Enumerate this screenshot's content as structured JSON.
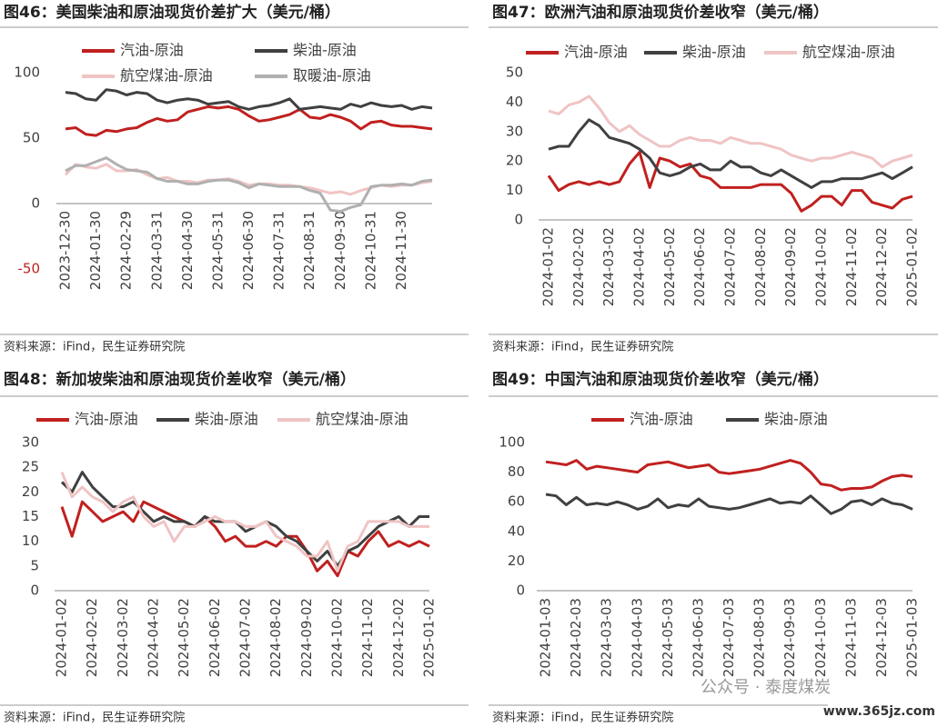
{
  "chart_data": [
    {
      "type": "line",
      "title": "图46：美国柴油和原油现货价差扩大（美元/桶）",
      "source": "资料来源：iFind，民生证券研究院",
      "categories": [
        "2023-12-30",
        null,
        null,
        "2024-01-30",
        null,
        null,
        "2024-02-29",
        null,
        null,
        "2024-03-31",
        null,
        null,
        "2024-04-30",
        null,
        null,
        "2024-05-31",
        null,
        null,
        "2024-06-30",
        null,
        null,
        "2024-07-31",
        null,
        null,
        "2024-08-31",
        null,
        null,
        "2024-09-30",
        null,
        null,
        "2024-10-31",
        null,
        null,
        "2024-11-30",
        null,
        null,
        null
      ],
      "series": [
        {
          "name": "汽油-原油",
          "color": "#c0201f",
          "values": [
            57,
            58,
            53,
            52,
            56,
            55,
            57,
            58,
            62,
            65,
            63,
            64,
            70,
            72,
            74,
            73,
            74,
            72,
            67,
            63,
            64,
            66,
            68,
            72,
            66,
            65,
            68,
            66,
            63,
            57,
            62,
            63,
            60,
            59,
            59,
            58,
            57
          ]
        },
        {
          "name": "柴油-原油",
          "color": "#404040",
          "values": [
            85,
            84,
            80,
            79,
            87,
            86,
            83,
            85,
            84,
            79,
            77,
            79,
            80,
            79,
            76,
            77,
            78,
            74,
            72,
            74,
            75,
            77,
            80,
            72,
            73,
            74,
            73,
            72,
            76,
            74,
            77,
            75,
            74,
            75,
            72,
            74,
            73
          ]
        },
        {
          "name": "航空煤油-原油",
          "color": "#f0c4c4",
          "values": [
            22,
            30,
            28,
            27,
            30,
            25,
            25,
            26,
            22,
            19,
            20,
            17,
            17,
            16,
            18,
            18,
            19,
            17,
            14,
            15,
            15,
            14,
            14,
            13,
            12,
            10,
            8,
            9,
            7,
            10,
            12,
            14,
            13,
            14,
            14,
            16,
            17
          ]
        },
        {
          "name": "取暖油-原油",
          "color": "#b0b0b0",
          "values": [
            25,
            29,
            29,
            32,
            35,
            30,
            26,
            25,
            24,
            19,
            17,
            17,
            15,
            15,
            17,
            18,
            18,
            16,
            12,
            15,
            14,
            13,
            13,
            13,
            10,
            8,
            -5,
            -6,
            -3,
            -1,
            13,
            14,
            14,
            15,
            14,
            17,
            18
          ]
        }
      ],
      "ylim": [
        -50,
        100
      ],
      "yticks": [
        -50,
        0,
        50,
        100
      ]
    },
    {
      "type": "line",
      "title": "图47：欧洲汽油和原油现货价差收窄（美元/桶）",
      "source": "资料来源：iFind，民生证券研究院",
      "categories": [
        "2024-01-02",
        null,
        null,
        "2024-02-02",
        null,
        null,
        "2024-03-02",
        null,
        null,
        "2024-04-02",
        null,
        null,
        "2024-05-02",
        null,
        null,
        "2024-06-02",
        null,
        null,
        "2024-07-02",
        null,
        null,
        "2024-08-02",
        null,
        null,
        "2024-09-02",
        null,
        null,
        "2024-10-02",
        null,
        null,
        "2024-11-02",
        null,
        null,
        "2024-12-02",
        null,
        null,
        "2025-01-02"
      ],
      "series": [
        {
          "name": "汽油-原油",
          "color": "#c0201f",
          "values": [
            15,
            10,
            12,
            13,
            12,
            13,
            12,
            13,
            19,
            23,
            11,
            21,
            20,
            18,
            19,
            15,
            14,
            11,
            11,
            11,
            11,
            12,
            12,
            12,
            9,
            3,
            5,
            8,
            8,
            5,
            10,
            10,
            6,
            5,
            4,
            7,
            8
          ]
        },
        {
          "name": "柴油-原油",
          "color": "#404040",
          "values": [
            24,
            25,
            25,
            30,
            34,
            32,
            28,
            27,
            26,
            24,
            21,
            16,
            15,
            16,
            18,
            19,
            17,
            17,
            20,
            18,
            18,
            16,
            15,
            17,
            15,
            13,
            11,
            13,
            13,
            14,
            14,
            14,
            15,
            16,
            14,
            16,
            18
          ]
        },
        {
          "name": "航空煤油-原油",
          "color": "#f0c4c4",
          "values": [
            37,
            36,
            39,
            40,
            42,
            38,
            33,
            30,
            32,
            29,
            27,
            25,
            25,
            27,
            28,
            27,
            27,
            26,
            28,
            27,
            26,
            26,
            25,
            24,
            22,
            21,
            20,
            21,
            21,
            22,
            23,
            22,
            21,
            18,
            20,
            21,
            22
          ]
        }
      ],
      "ylim": [
        0,
        50
      ],
      "yticks": [
        0,
        10,
        20,
        30,
        40,
        50
      ]
    },
    {
      "type": "line",
      "title": "图48：新加坡柴油和原油现货价差收窄（美元/桶）",
      "source": "资料来源：iFind，民生证券研究院",
      "categories": [
        "2024-01-02",
        null,
        null,
        "2024-02-02",
        null,
        null,
        "2024-03-02",
        null,
        null,
        "2024-04-02",
        null,
        null,
        "2024-05-02",
        null,
        null,
        "2024-06-02",
        null,
        null,
        "2024-07-02",
        null,
        null,
        "2024-08-02",
        null,
        null,
        "2024-09-02",
        null,
        null,
        "2024-10-02",
        null,
        null,
        "2024-11-02",
        null,
        null,
        "2024-12-02",
        null,
        null,
        "2025-01-02"
      ],
      "series": [
        {
          "name": "汽油-原油",
          "color": "#c0201f",
          "values": [
            17,
            11,
            18,
            16,
            14,
            15,
            16,
            14,
            18,
            17,
            16,
            15,
            14,
            13,
            15,
            13,
            10,
            11,
            9,
            9,
            10,
            9,
            11,
            11,
            8,
            4,
            6,
            3,
            8,
            7,
            10,
            12,
            9,
            10,
            9,
            10,
            9
          ]
        },
        {
          "name": "柴油-原油",
          "color": "#404040",
          "values": [
            22,
            20,
            24,
            21,
            19,
            17,
            17,
            18,
            16,
            14,
            15,
            14,
            14,
            13,
            15,
            14,
            14,
            14,
            12,
            13,
            14,
            13,
            11,
            10,
            8,
            6,
            8,
            5,
            8,
            9,
            11,
            13,
            14,
            15,
            13,
            15,
            15
          ]
        },
        {
          "name": "航空煤油-原油",
          "color": "#f0c4c4",
          "values": [
            24,
            19,
            21,
            19,
            18,
            16,
            18,
            19,
            15,
            13,
            14,
            10,
            13,
            13,
            14,
            15,
            14,
            14,
            13,
            13,
            14,
            11,
            10,
            9,
            7,
            7,
            10,
            4,
            9,
            10,
            14,
            14,
            14,
            14,
            13,
            13,
            13
          ]
        }
      ],
      "ylim": [
        0,
        30
      ],
      "yticks": [
        0,
        5,
        10,
        15,
        20,
        25,
        30
      ]
    },
    {
      "type": "line",
      "title": "图49：中国汽油和原油现货价差收窄（美元/桶）",
      "source": "资料来源：iFind，民生证券研究院",
      "categories": [
        "2024-01-03",
        null,
        null,
        "2024-02-03",
        null,
        null,
        "2024-03-03",
        null,
        null,
        "2024-04-03",
        null,
        null,
        "2024-05-03",
        null,
        null,
        "2024-06-03",
        null,
        null,
        "2024-07-03",
        null,
        null,
        "2024-08-03",
        null,
        null,
        "2024-09-03",
        null,
        null,
        "2024-10-03",
        null,
        null,
        "2024-11-03",
        null,
        null,
        "2024-12-03",
        null,
        null,
        "2025-01-03"
      ],
      "series": [
        {
          "name": "汽油-原油",
          "color": "#c0201f",
          "values": [
            87,
            86,
            85,
            88,
            82,
            84,
            83,
            82,
            81,
            80,
            85,
            86,
            87,
            85,
            83,
            84,
            85,
            80,
            79,
            80,
            81,
            82,
            84,
            86,
            88,
            86,
            80,
            72,
            71,
            68,
            69,
            69,
            70,
            74,
            77,
            78,
            77
          ]
        },
        {
          "name": "柴油-原油",
          "color": "#404040",
          "values": [
            65,
            64,
            58,
            63,
            58,
            59,
            58,
            60,
            58,
            55,
            57,
            62,
            56,
            58,
            57,
            62,
            57,
            56,
            55,
            56,
            58,
            60,
            62,
            59,
            60,
            59,
            64,
            58,
            52,
            55,
            60,
            61,
            58,
            62,
            59,
            58,
            55
          ]
        }
      ],
      "ylim": [
        0,
        100
      ],
      "yticks": [
        0,
        20,
        40,
        60,
        80,
        100
      ]
    }
  ],
  "watermark": {
    "account": "公众号 · 泰度煤炭",
    "site": "www.365jz.com"
  }
}
